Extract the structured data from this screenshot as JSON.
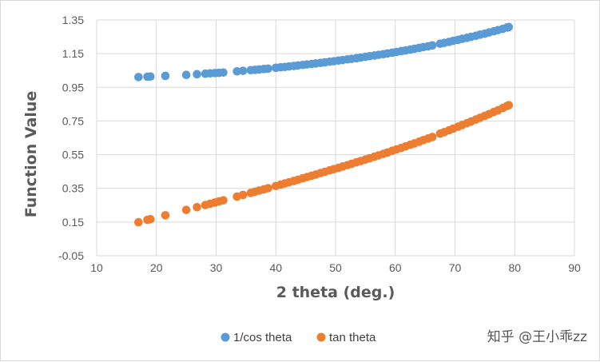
{
  "chart_data": {
    "type": "scatter",
    "title": "",
    "xlabel": "2 theta (deg.)",
    "ylabel": "Function Value",
    "xlim": [
      10,
      90
    ],
    "ylim": [
      -0.05,
      1.35
    ],
    "x_ticks": [
      "10",
      "20",
      "30",
      "40",
      "50",
      "60",
      "70",
      "80",
      "90"
    ],
    "y_ticks": [
      "-0.05",
      "0.15",
      "0.35",
      "0.55",
      "0.75",
      "0.95",
      "1.15",
      "1.35"
    ],
    "grid": true,
    "legend_position": "bottom",
    "x": [
      17,
      18.5,
      19,
      21.5,
      25,
      26.8,
      28.2,
      29,
      29.8,
      30.5,
      31.2,
      33.5,
      34.5,
      35.8,
      36.5,
      37.2,
      38,
      38.7,
      40,
      40.8,
      41.5,
      42.2,
      43,
      43.7,
      44.5,
      45.2,
      46,
      46.7,
      47.5,
      48.2,
      49,
      49.7,
      50.5,
      51.2,
      52,
      52.7,
      53.5,
      54.2,
      55,
      55.7,
      56.5,
      57.2,
      58,
      58.7,
      59.5,
      60.2,
      61,
      61.7,
      62.5,
      63.2,
      64,
      64.7,
      65.5,
      66.2,
      67.5,
      68.2,
      69,
      69.7,
      70.5,
      71.2,
      72,
      72.7,
      73.5,
      74.2,
      75,
      75.7,
      76.5,
      77.2,
      78,
      78.7,
      79
    ],
    "series": [
      {
        "name": "1/cos theta",
        "color": "#5b9bd5",
        "values": [
          1.011,
          1.013,
          1.014,
          1.018,
          1.024,
          1.028,
          1.031,
          1.033,
          1.035,
          1.036,
          1.038,
          1.045,
          1.048,
          1.052,
          1.054,
          1.056,
          1.059,
          1.061,
          1.066,
          1.069,
          1.071,
          1.074,
          1.077,
          1.08,
          1.083,
          1.086,
          1.089,
          1.092,
          1.095,
          1.098,
          1.102,
          1.105,
          1.109,
          1.112,
          1.116,
          1.119,
          1.123,
          1.127,
          1.131,
          1.135,
          1.139,
          1.143,
          1.147,
          1.151,
          1.156,
          1.16,
          1.165,
          1.169,
          1.174,
          1.179,
          1.184,
          1.189,
          1.194,
          1.199,
          1.209,
          1.214,
          1.22,
          1.226,
          1.232,
          1.238,
          1.244,
          1.25,
          1.256,
          1.263,
          1.269,
          1.276,
          1.283,
          1.29,
          1.297,
          1.305,
          1.308
        ]
      },
      {
        "name": "tan theta",
        "color": "#ed7d31",
        "values": [
          0.149,
          0.163,
          0.167,
          0.19,
          0.222,
          0.238,
          0.251,
          0.259,
          0.266,
          0.273,
          0.279,
          0.301,
          0.311,
          0.323,
          0.33,
          0.337,
          0.344,
          0.351,
          0.364,
          0.372,
          0.379,
          0.386,
          0.394,
          0.401,
          0.41,
          0.417,
          0.425,
          0.432,
          0.441,
          0.448,
          0.457,
          0.464,
          0.472,
          0.48,
          0.488,
          0.496,
          0.505,
          0.512,
          0.521,
          0.529,
          0.538,
          0.546,
          0.555,
          0.563,
          0.573,
          0.581,
          0.59,
          0.599,
          0.609,
          0.617,
          0.627,
          0.637,
          0.646,
          0.655,
          0.675,
          0.684,
          0.695,
          0.705,
          0.716,
          0.726,
          0.737,
          0.747,
          0.759,
          0.769,
          0.781,
          0.791,
          0.804,
          0.814,
          0.827,
          0.839,
          0.844
        ]
      }
    ]
  },
  "watermark": "知乎 @王小乖zz"
}
